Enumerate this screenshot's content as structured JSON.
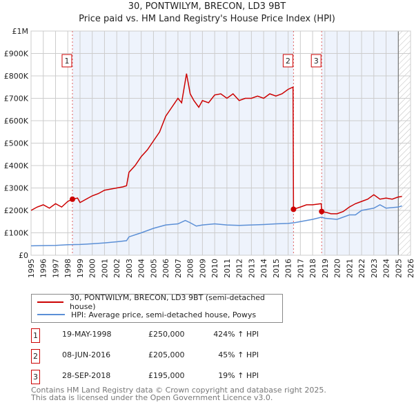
{
  "chart_data": {
    "type": "line",
    "title": "30, PONTWILYM, BRECON, LD3 9BT",
    "subtitle": "Price paid vs. HM Land Registry's House Price Index (HPI)",
    "xlim": [
      1995,
      2026
    ],
    "ylim": [
      0,
      1000000
    ],
    "x_ticks": [
      "1995",
      "1996",
      "1997",
      "1998",
      "1999",
      "2000",
      "2001",
      "2002",
      "2003",
      "2004",
      "2005",
      "2006",
      "2007",
      "2008",
      "2009",
      "2010",
      "2011",
      "2012",
      "2013",
      "2014",
      "2015",
      "2016",
      "2017",
      "2018",
      "2019",
      "2020",
      "2021",
      "2022",
      "2023",
      "2024",
      "2025",
      "2026"
    ],
    "y_ticks": [
      {
        "v": 0,
        "l": "£0"
      },
      {
        "v": 100000,
        "l": "£100K"
      },
      {
        "v": 200000,
        "l": "£200K"
      },
      {
        "v": 300000,
        "l": "£300K"
      },
      {
        "v": 400000,
        "l": "£400K"
      },
      {
        "v": 500000,
        "l": "£500K"
      },
      {
        "v": 600000,
        "l": "£600K"
      },
      {
        "v": 700000,
        "l": "£700K"
      },
      {
        "v": 800000,
        "l": "£800K"
      },
      {
        "v": 900000,
        "l": "£900K"
      },
      {
        "v": 1000000,
        "l": "£1M"
      }
    ],
    "grid": true,
    "series": [
      {
        "name": "30, PONTWILYM, BRECON, LD3 9BT (semi-detached house)",
        "color": "#cc0000",
        "x": [
          1995,
          1995.5,
          1996,
          1996.5,
          1997,
          1997.5,
          1998,
          1998.38,
          1998.8,
          1999,
          1999.5,
          2000,
          2000.5,
          2001,
          2001.5,
          2002,
          2002.5,
          2002.8,
          2003,
          2003.5,
          2004,
          2004.5,
          2005,
          2005.5,
          2006,
          2006.5,
          2007,
          2007.3,
          2007.7,
          2008,
          2008.3,
          2008.7,
          2009,
          2009.5,
          2010,
          2010.5,
          2011,
          2011.5,
          2012,
          2012.5,
          2013,
          2013.5,
          2014,
          2014.5,
          2015,
          2015.5,
          2016,
          2016.4,
          2016.44,
          2017,
          2017.5,
          2018,
          2018.7,
          2018.74,
          2019.2,
          2019.5,
          2020,
          2020.5,
          2021,
          2021.5,
          2022,
          2022.5,
          2023,
          2023.5,
          2024,
          2024.5,
          2025,
          2025.3
        ],
        "y": [
          200000,
          215000,
          225000,
          210000,
          230000,
          215000,
          240000,
          250000,
          255000,
          235000,
          250000,
          265000,
          275000,
          290000,
          295000,
          300000,
          305000,
          310000,
          370000,
          400000,
          440000,
          470000,
          510000,
          550000,
          620000,
          660000,
          700000,
          680000,
          810000,
          720000,
          690000,
          660000,
          690000,
          680000,
          715000,
          720000,
          700000,
          720000,
          690000,
          700000,
          700000,
          710000,
          700000,
          720000,
          710000,
          720000,
          740000,
          750000,
          205000,
          215000,
          225000,
          225000,
          230000,
          195000,
          190000,
          185000,
          185000,
          195000,
          215000,
          230000,
          240000,
          250000,
          270000,
          250000,
          255000,
          250000,
          260000,
          262000
        ]
      },
      {
        "name": "HPI: Average price, semi-detached house, Powys",
        "color": "#5b8fd6",
        "x": [
          1995,
          1996,
          1997,
          1998,
          1999,
          2000,
          2001,
          2002,
          2002.8,
          2003,
          2004,
          2005,
          2006,
          2007,
          2007.6,
          2008,
          2008.5,
          2009,
          2010,
          2011,
          2012,
          2013,
          2014,
          2015,
          2016,
          2016.5,
          2017,
          2018,
          2018.74,
          2019,
          2020,
          2021,
          2021.5,
          2022,
          2023,
          2023.5,
          2024,
          2025,
          2025.3
        ],
        "y": [
          42000,
          43000,
          44000,
          47000,
          48000,
          51000,
          55000,
          60000,
          65000,
          82000,
          100000,
          120000,
          135000,
          140000,
          155000,
          145000,
          130000,
          135000,
          140000,
          135000,
          133000,
          135000,
          137000,
          140000,
          142000,
          145000,
          150000,
          160000,
          170000,
          165000,
          160000,
          180000,
          180000,
          200000,
          210000,
          225000,
          210000,
          215000,
          220000
        ]
      }
    ],
    "sales": [
      {
        "label": "1",
        "x": 1998.38,
        "y": 250000,
        "date": "19-MAY-1998",
        "price": "£250,000",
        "hpi": "424% ↑ HPI"
      },
      {
        "label": "2",
        "x": 2016.44,
        "y": 205000,
        "date": "08-JUN-2016",
        "price": "£205,000",
        "hpi": "45% ↑ HPI"
      },
      {
        "label": "3",
        "x": 2018.74,
        "y": 195000,
        "date": "28-SEP-2018",
        "price": "£195,000",
        "hpi": "19% ↑ HPI"
      }
    ],
    "forecast_start": 2025.0
  },
  "footer": {
    "line1": "Contains HM Land Registry data © Crown copyright and database right 2025.",
    "line2": "This data is licensed under the Open Government Licence v3.0."
  }
}
